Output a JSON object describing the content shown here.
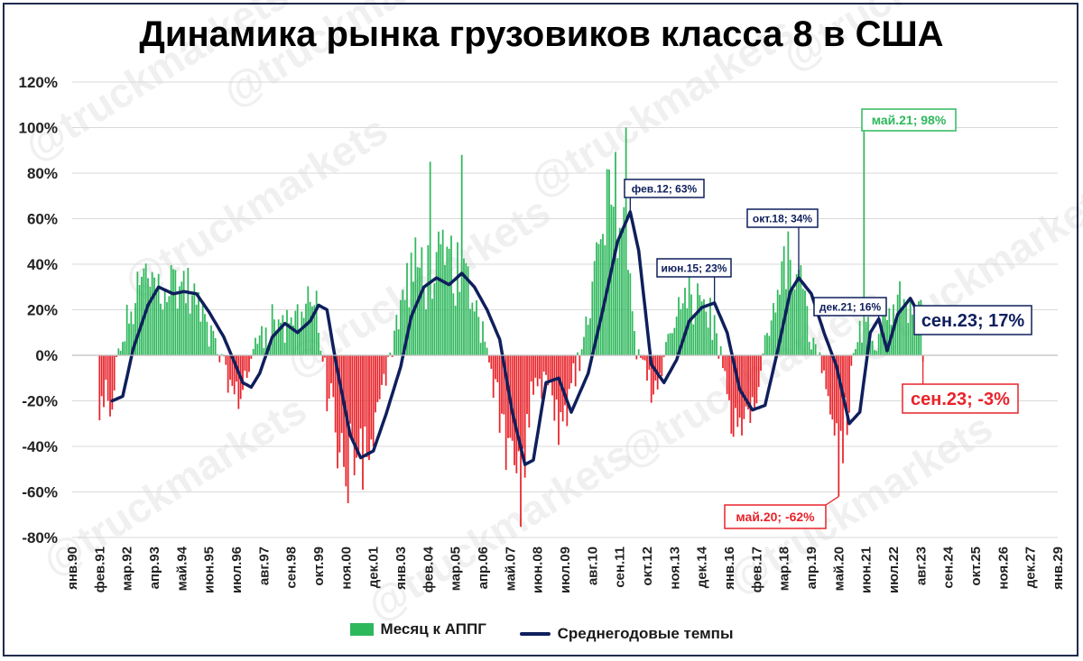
{
  "colors": {
    "positive": "#2eb85c",
    "negative": "#e8232a",
    "line": "#0f1f5c",
    "grid": "#d9d9d9",
    "border": "#1f2a4e"
  },
  "watermark": "@truckmarkets",
  "chart_data": {
    "type": "bar+line",
    "title": "Динамика рынка грузовиков класса 8 в США",
    "ylim": [
      -80,
      120
    ],
    "yticks": [
      -80,
      -60,
      -40,
      -20,
      0,
      20,
      40,
      60,
      80,
      100,
      120
    ],
    "ytick_labels": [
      "-80%",
      "-60%",
      "-40%",
      "-20%",
      "0%",
      "20%",
      "40%",
      "60%",
      "80%",
      "100%",
      "120%"
    ],
    "x_start": "1990-01",
    "x_end": "2029-01",
    "xtick_labels": [
      "янв.90",
      "фев.91",
      "мар.92",
      "апр.93",
      "май.94",
      "июн.95",
      "июл.96",
      "авг.97",
      "сен.98",
      "окт.99",
      "ноя.00",
      "дек.01",
      "янв.03",
      "фев.04",
      "мар.05",
      "апр.06",
      "май.07",
      "июн.08",
      "июл.09",
      "авг.10",
      "сен.11",
      "окт.12",
      "ноя.13",
      "дек.14",
      "янв.16",
      "фев.17",
      "мар.18",
      "апр.19",
      "май.20",
      "июн.21",
      "июл.22",
      "авг.23",
      "сен.24",
      "окт.25",
      "ноя.26",
      "дек.27",
      "янв.29"
    ],
    "legend": [
      "Месяц к АППГ",
      "Среднегодовые темпы"
    ],
    "line_series": {
      "name": "Среднегодовые темпы",
      "x": [
        "1991-08",
        "1992-01",
        "1992-06",
        "1993-01",
        "1993-06",
        "1994-01",
        "1994-06",
        "1994-12",
        "1995-06",
        "1996-01",
        "1996-06",
        "1996-10",
        "1997-02",
        "1997-06",
        "1997-12",
        "1998-06",
        "1998-12",
        "1999-06",
        "1999-10",
        "2000-02",
        "2000-06",
        "2001-01",
        "2001-06",
        "2001-12",
        "2002-06",
        "2003-01",
        "2003-06",
        "2003-12",
        "2004-06",
        "2004-12",
        "2005-06",
        "2005-12",
        "2006-06",
        "2006-12",
        "2007-06",
        "2007-12",
        "2008-04",
        "2008-10",
        "2009-04",
        "2009-10",
        "2010-06",
        "2011-01",
        "2011-08",
        "2012-02",
        "2012-06",
        "2012-12",
        "2013-06",
        "2013-12",
        "2014-06",
        "2014-12",
        "2015-06",
        "2015-12",
        "2016-06",
        "2016-12",
        "2017-06",
        "2017-12",
        "2018-06",
        "2018-10",
        "2019-04",
        "2019-10",
        "2020-04",
        "2020-10",
        "2021-03",
        "2021-08",
        "2021-12",
        "2022-04",
        "2022-09",
        "2023-03",
        "2023-06",
        "2023-09"
      ],
      "y": [
        -20,
        -18,
        3,
        22,
        30,
        27,
        28,
        27,
        19,
        8,
        -3,
        -12,
        -14,
        -8,
        8,
        14,
        10,
        15,
        22,
        20,
        -2,
        -35,
        -45,
        -42,
        -26,
        -5,
        17,
        30,
        34,
        31,
        36,
        30,
        20,
        7,
        -25,
        -48,
        -46,
        -12,
        -10,
        -25,
        -8,
        20,
        50,
        63,
        46,
        -4,
        -12,
        -2,
        15,
        21,
        23,
        10,
        -15,
        -24,
        -22,
        2,
        28,
        34,
        27,
        10,
        -5,
        -30,
        -25,
        10,
        16,
        2,
        18,
        25,
        20,
        17
      ]
    },
    "bar_series_name": "Месяц к АППГ",
    "annotations": [
      {
        "text": "фев.12; 63%",
        "date": "2012-02",
        "value": 63,
        "color": "#0f1f5c"
      },
      {
        "text": "окт.18; 34%",
        "date": "2018-10",
        "value": 34,
        "color": "#0f1f5c"
      },
      {
        "text": "июн.15; 23%",
        "date": "2015-06",
        "value": 23,
        "color": "#0f1f5c"
      },
      {
        "text": "дек.21; 16%",
        "date": "2021-12",
        "value": 16,
        "color": "#0f1f5c"
      },
      {
        "text": "сен.23; 17%",
        "date": "2023-09",
        "value": 17,
        "color": "#0f1f5c",
        "large": true
      },
      {
        "text": "май.21; 98%",
        "date": "2021-05",
        "value": 98,
        "color": "#2eb85c"
      },
      {
        "text": "май.20; -62%",
        "date": "2020-05",
        "value": -62,
        "color": "#e8232a"
      },
      {
        "text": "сен.23; -3%",
        "date": "2023-09",
        "value": -3,
        "color": "#e8232a",
        "large": true
      }
    ]
  }
}
